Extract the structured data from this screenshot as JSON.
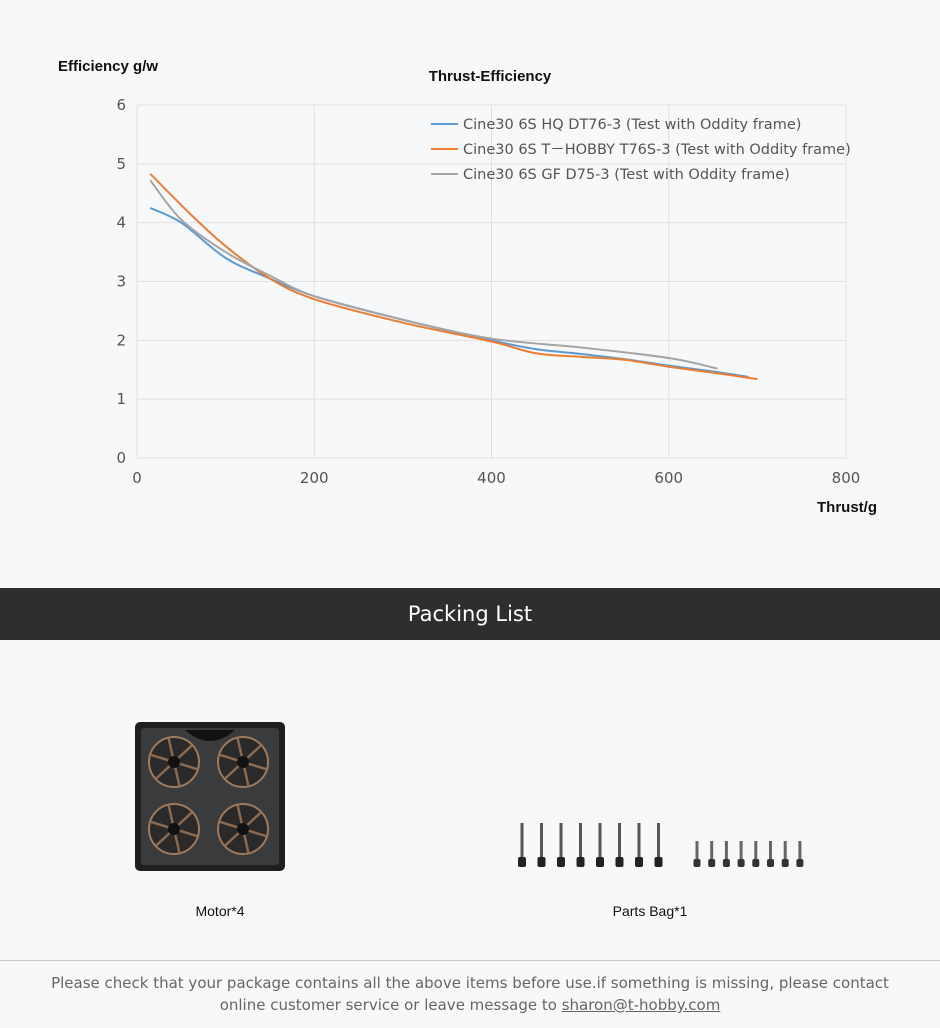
{
  "chart_data": {
    "type": "line",
    "title": "Thrust-Efficiency",
    "xlabel": "Thrust/g",
    "ylabel": "Efficiency g/w",
    "xlim": [
      0,
      800
    ],
    "ylim": [
      0,
      6
    ],
    "xticks": [
      "0",
      "200",
      "400",
      "600",
      "800"
    ],
    "yticks": [
      "0",
      "1",
      "2",
      "3",
      "4",
      "5",
      "6"
    ],
    "grid": true,
    "legend_position": "top-right",
    "series": [
      {
        "name": "Cine30 6S HQ DT76-3  (Test with Oddity frame)",
        "color": "#5b9bd5",
        "x": [
          15,
          50,
          100,
          150,
          200,
          300,
          400,
          450,
          500,
          550,
          600,
          650,
          690
        ],
        "y": [
          4.25,
          4.0,
          3.4,
          3.05,
          2.75,
          2.35,
          2.0,
          1.85,
          1.77,
          1.68,
          1.57,
          1.47,
          1.38
        ]
      },
      {
        "name": "Cine30 6S T－HOBBY T76S-3  (Test with Oddity frame)",
        "color": "#ed7d31",
        "x": [
          15,
          60,
          100,
          150,
          200,
          300,
          400,
          450,
          500,
          550,
          600,
          650,
          700
        ],
        "y": [
          4.83,
          4.15,
          3.6,
          3.05,
          2.7,
          2.3,
          1.98,
          1.78,
          1.72,
          1.67,
          1.55,
          1.45,
          1.34
        ]
      },
      {
        "name": "Cine30 6S GF  D75-3  (Test with Oddity frame)",
        "color": "#a5a5a5",
        "x": [
          15,
          50,
          100,
          150,
          200,
          300,
          400,
          500,
          600,
          655
        ],
        "y": [
          4.72,
          4.05,
          3.5,
          3.1,
          2.75,
          2.35,
          2.03,
          1.88,
          1.7,
          1.52
        ]
      }
    ]
  },
  "packing": {
    "header": "Packing List",
    "items": [
      {
        "label": "Motor*4"
      },
      {
        "label": "Parts Bag*1"
      }
    ]
  },
  "footer": {
    "note": "Please check that your package contains all the above items before use.if something is missing, please contact online customer service or leave message to ",
    "email": "sharon@t-hobby.com"
  }
}
